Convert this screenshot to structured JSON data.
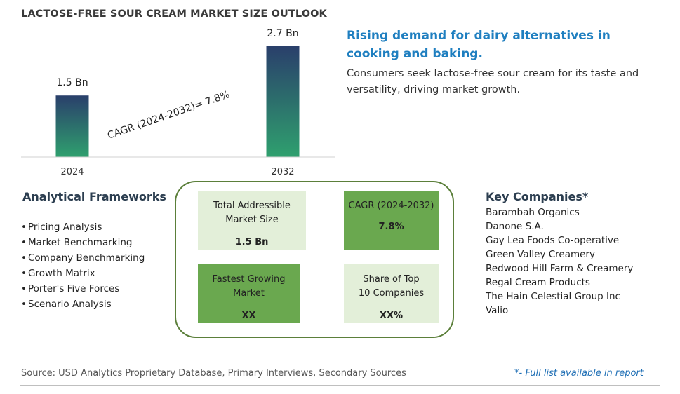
{
  "title": "LACTOSE-FREE SOUR CREAM MARKET SIZE OUTLOOK",
  "chart_data": {
    "type": "bar",
    "categories": [
      "2024",
      "2032"
    ],
    "values": [
      1.5,
      2.7
    ],
    "data_labels": [
      "1.5 Bn",
      "2.7 Bn"
    ],
    "annotation": "CAGR (2024-2032)=  7.8%",
    "ylim": [
      0,
      2.7
    ],
    "colors": {
      "bar_top": "#2a3f6b",
      "bar_bottom": "#2fa06e"
    }
  },
  "headline": "Rising demand for dairy alternatives in cooking and baking.",
  "description": "Consumers seek lactose-free sour cream for its taste and versatility, driving market growth.",
  "frameworks": {
    "title": "Analytical Frameworks",
    "bullet": "•",
    "items": [
      "Pricing Analysis",
      "Market Benchmarking",
      "Company Benchmarking",
      "Growth Matrix",
      "Porter's Five Forces",
      "Scenario Analysis"
    ]
  },
  "cards": {
    "tam": {
      "label": "Total Addressible Market Size",
      "value": "1.5 Bn"
    },
    "cagr": {
      "label": "CAGR (2024-2032)",
      "value": "7.8%"
    },
    "fastest": {
      "label": "Fastest Growing Market",
      "value": "XX"
    },
    "share": {
      "label": "Share of Top 10 Companies",
      "value": "XX%"
    }
  },
  "companies": {
    "title": "Key Companies*",
    "items": [
      "Barambah Organics",
      "Danone S.A.",
      "Gay Lea Foods Co-operative",
      "Green Valley Creamery",
      "Redwood Hill Farm & Creamery",
      "Regal Cream Products",
      "The Hain Celestial Group Inc",
      "Valio"
    ]
  },
  "source": "Source: USD Analytics Proprietary Database, Primary Interviews, Secondary Sources",
  "footnote": "*- Full list available in report"
}
